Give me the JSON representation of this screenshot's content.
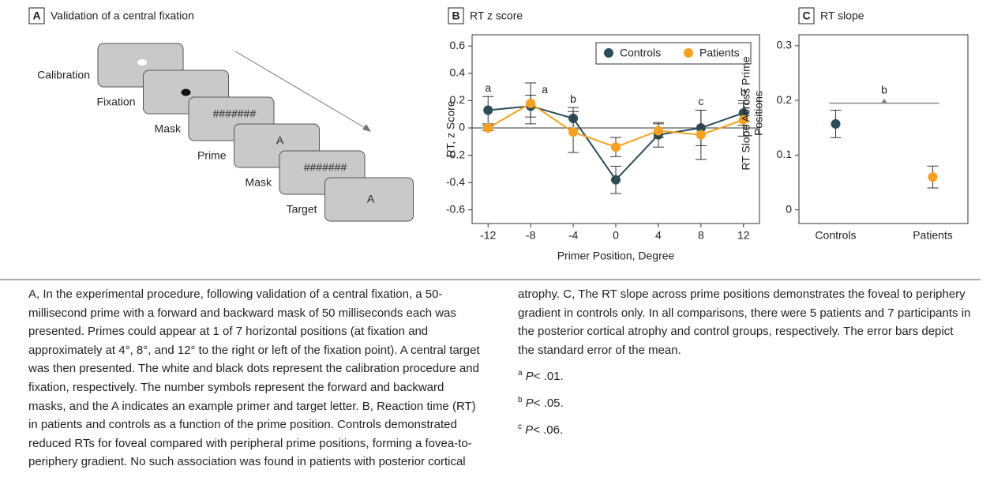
{
  "panel_a": {
    "letter": "A",
    "title": "Validation of a central fixation",
    "screens": [
      {
        "label": "Calibration",
        "content": ""
      },
      {
        "label": "Fixation",
        "content": ""
      },
      {
        "label": "Mask",
        "content": "#######"
      },
      {
        "label": "Prime",
        "content": "A"
      },
      {
        "label": "Mask",
        "content": "#######"
      },
      {
        "label": "Target",
        "content": "A"
      }
    ]
  },
  "chart_data": [
    {
      "type": "line",
      "letter": "B",
      "title": "RT z score",
      "xlabel": "Primer Position, Degree",
      "ylabel": "RT, z Score",
      "x": [
        -12,
        -8,
        -4,
        0,
        4,
        8,
        12
      ],
      "xlim": [
        -13.5,
        13.5
      ],
      "xticks": [
        -12,
        -8,
        -4,
        0,
        4,
        8,
        12
      ],
      "ylim": [
        -0.7,
        0.7
      ],
      "yticks": [
        0.6,
        0.4,
        0.2,
        0,
        -0.2,
        -0.4,
        -0.6
      ],
      "legend": "top-right",
      "series": [
        {
          "name": "Controls",
          "color": "#2b4d59",
          "values": [
            0.13,
            0.16,
            0.07,
            -0.38,
            -0.05,
            0.0,
            0.11
          ],
          "errors": [
            0.1,
            0.08,
            0.08,
            0.1,
            0.09,
            0.13,
            0.09
          ]
        },
        {
          "name": "Patients",
          "color": "#f6a01c",
          "values": [
            0.0,
            0.18,
            -0.03,
            -0.14,
            -0.02,
            -0.05,
            0.06
          ],
          "errors": [
            0.02,
            0.15,
            0.15,
            0.07,
            0.05,
            0.18,
            0.12
          ]
        }
      ],
      "annotations": [
        {
          "x": -12,
          "label": "a"
        },
        {
          "x": -8,
          "label": "a"
        },
        {
          "x": -4,
          "label": "b"
        },
        {
          "x": 8,
          "label": "c"
        },
        {
          "x": 12,
          "label": "b"
        }
      ]
    },
    {
      "type": "errorbar",
      "letter": "C",
      "title": "RT slope",
      "ylabel": [
        "RT Slope Across Prime",
        "Positions"
      ],
      "categories": [
        "Controls",
        "Patients"
      ],
      "colors": [
        "#2b4d59",
        "#f6a01c"
      ],
      "values": [
        0.157,
        0.06
      ],
      "errors": [
        0.025,
        0.02
      ],
      "ylim": [
        -0.025,
        0.32
      ],
      "yticks": [
        0.3,
        0.2,
        0.1,
        0
      ],
      "significance": {
        "value": 0.195,
        "label": "b"
      }
    }
  ],
  "caption": "A, In the experimental procedure, following validation of a central fixation, a 50-millisecond prime with a forward and backward mask of 50 milliseconds each was presented. Primes could appear at 1 of 7 horizontal positions (at fixation and approximately at 4°, 8°, and 12° to the right or left of the fixation point). A central target was then presented. The white and black dots represent the calibration procedure and fixation, respectively. The number symbols represent the forward and backward masks, and the A indicates an example primer and target letter. B, Reaction time (RT) in patients and controls as a function of the prime position. Controls demonstrated reduced RTs for foveal compared with peripheral prime positions, forming a fovea-to-periphery gradient. No such association was found in patients with posterior cortical atrophy. C, The RT slope across prime positions demonstrates the foveal to periphery gradient in controls only. In all comparisons, there were 5 patients and 7 participants in the posterior cortical atrophy and control groups, respectively. The error bars depict the standard error of the mean.",
  "footnotes": [
    {
      "mark": "a",
      "p": "P",
      "text": "< .01."
    },
    {
      "mark": "b",
      "p": "P",
      "text": "< .05."
    },
    {
      "mark": "c",
      "p": "P",
      "text": "< .06."
    }
  ]
}
